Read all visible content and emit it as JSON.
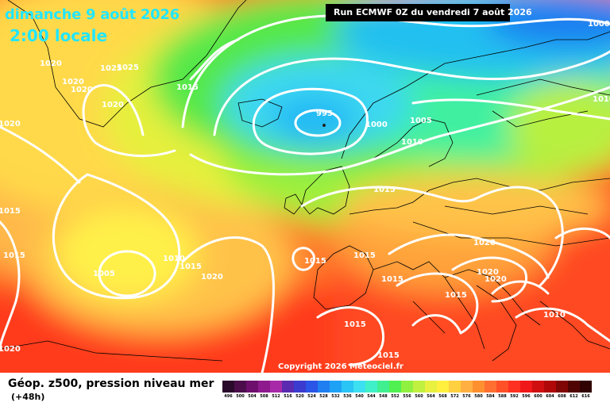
{
  "header": {
    "date": "dimanche 9 août 2026",
    "time": "2:00 locale",
    "run": "Run ECMWF 0Z du vendredi 7 août 2026"
  },
  "copyright": "Copyright 2026 Meteociel.fr",
  "legend": {
    "title": "Géop. z500, pression niveau mer",
    "lead": "(+48h)",
    "scale_values": [
      "496",
      "500",
      "504",
      "508",
      "512",
      "516",
      "520",
      "524",
      "528",
      "532",
      "536",
      "540",
      "544",
      "548",
      "552",
      "556",
      "560",
      "564",
      "568",
      "572",
      "576",
      "580",
      "584",
      "588",
      "592",
      "596",
      "600",
      "604",
      "608",
      "612",
      "616"
    ],
    "scale_colors": [
      "#2a0a2a",
      "#4b0e4b",
      "#6e0f6e",
      "#8e1a8e",
      "#a82aa8",
      "#5a2ab0",
      "#3b3bd0",
      "#2a55e6",
      "#1f7ff0",
      "#1fa2f5",
      "#2ac4f5",
      "#3ce0f0",
      "#40f0c8",
      "#40f090",
      "#50f050",
      "#90f040",
      "#c0f040",
      "#e8f040",
      "#fff040",
      "#ffd040",
      "#ffb040",
      "#ff9030",
      "#ff7030",
      "#ff5028",
      "#ff3020",
      "#f01818",
      "#d01010",
      "#b00808",
      "#800505",
      "#500303",
      "#300202"
    ]
  },
  "isobars": [
    {
      "value": "1020",
      "pos": "greenland-1"
    },
    {
      "value": "1020",
      "pos": "greenland-2"
    },
    {
      "value": "1020",
      "pos": "greenland-3"
    },
    {
      "value": "1025",
      "pos": "greenland-4"
    },
    {
      "value": "1025",
      "pos": "greenland-5"
    },
    {
      "value": "1020",
      "pos": "greenland-6"
    },
    {
      "value": "1015",
      "pos": "greenland-7"
    },
    {
      "value": "1020",
      "pos": "west-edge-1"
    },
    {
      "value": "995",
      "pos": "low-center"
    },
    {
      "value": "1000",
      "pos": "low-east"
    },
    {
      "value": "1005",
      "pos": "norway"
    },
    {
      "value": "1010",
      "pos": "north-sea"
    },
    {
      "value": "1000",
      "pos": "top-right"
    },
    {
      "value": "1010",
      "pos": "right-edge-1"
    },
    {
      "value": "1015",
      "pos": "uk"
    },
    {
      "value": "1015",
      "pos": "atlantic-west"
    },
    {
      "value": "1010",
      "pos": "azores-1"
    },
    {
      "value": "1005",
      "pos": "azores-low"
    },
    {
      "value": "1015",
      "pos": "azores-2"
    },
    {
      "value": "1020",
      "pos": "azores-3"
    },
    {
      "value": "1015",
      "pos": "biscay"
    },
    {
      "value": "1015",
      "pos": "france"
    },
    {
      "value": "1015",
      "pos": "alps"
    },
    {
      "value": "1020",
      "pos": "central-europe"
    },
    {
      "value": "1020",
      "pos": "balkans-1"
    },
    {
      "value": "1020",
      "pos": "balkans-2"
    },
    {
      "value": "1015",
      "pos": "italy"
    },
    {
      "value": "1015",
      "pos": "iberia"
    },
    {
      "value": "1015",
      "pos": "mediterranean"
    },
    {
      "value": "1015",
      "pos": "right-edge-2"
    },
    {
      "value": "1010",
      "pos": "greece"
    },
    {
      "value": "1020",
      "pos": "west-edge-2"
    }
  ]
}
